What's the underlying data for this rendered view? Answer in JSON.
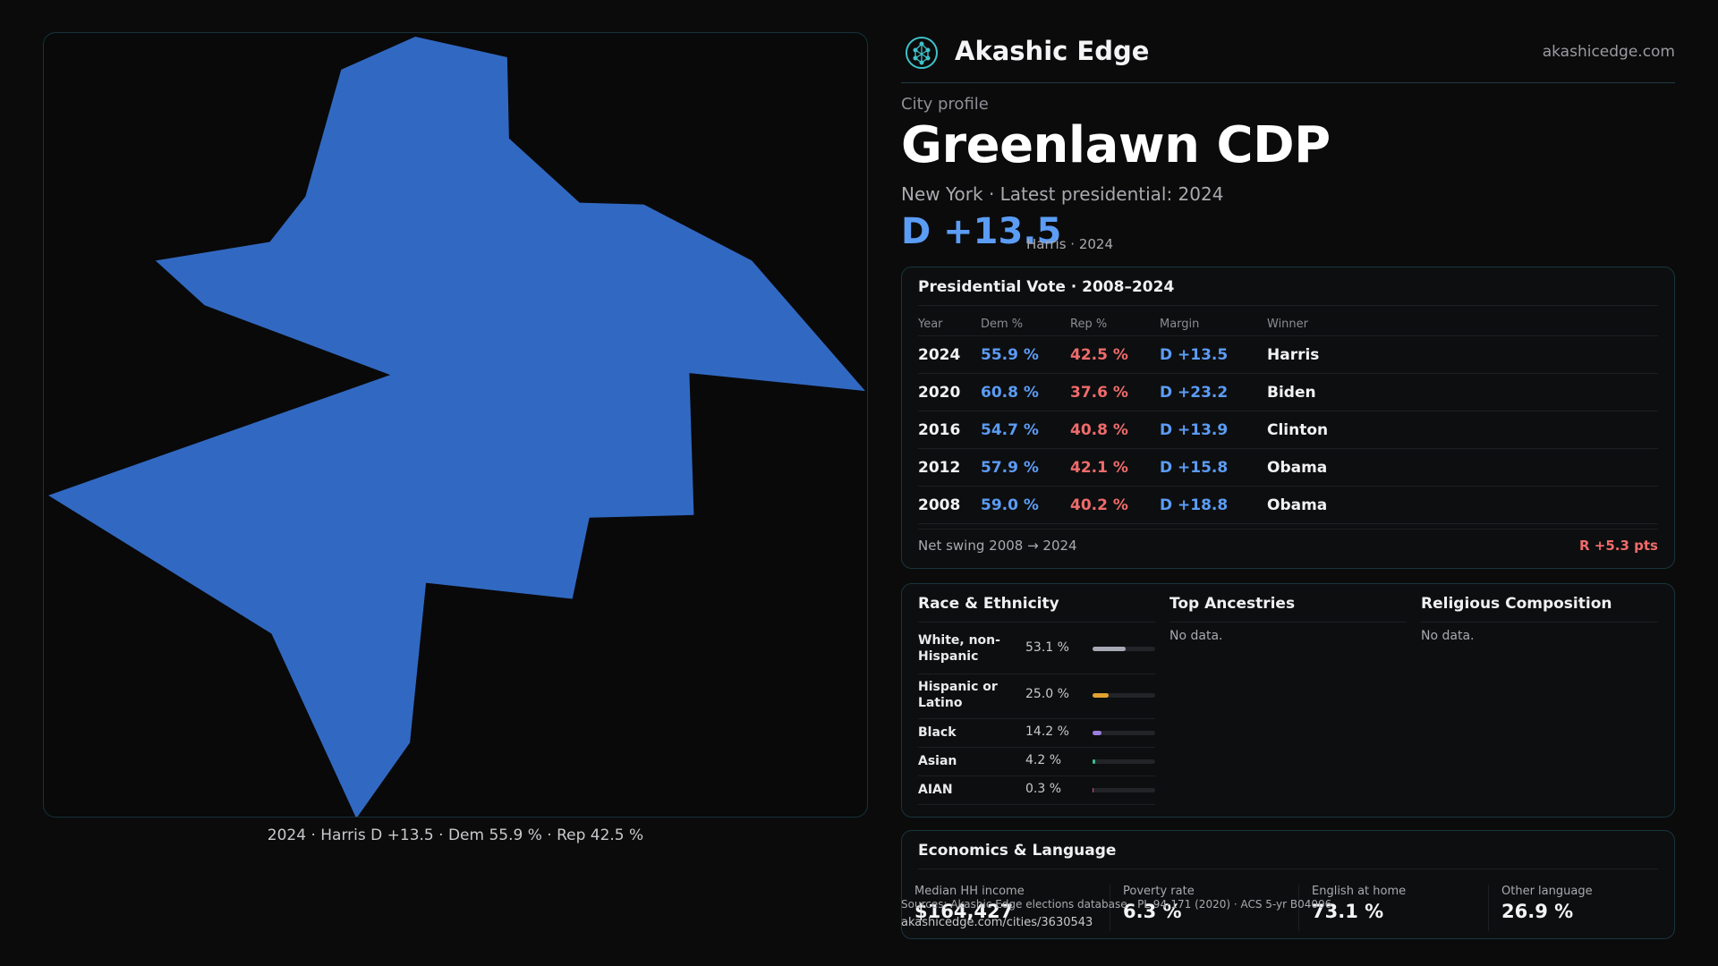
{
  "map": {
    "caption": "2024 · Harris D +13.5 · Dem 55.9 % · Rep 42.5 %",
    "fill_color": "#3169c2"
  },
  "brand": {
    "name": "Akashic Edge",
    "url": "akashicedge.com",
    "logo_icon": "tree-of-life-icon"
  },
  "profile": {
    "kicker": "City profile",
    "city": "Greenlawn CDP",
    "subline": "New York  · Latest presidential: 2024",
    "margin": "D +13.5",
    "margin_note": "Harris · 2024"
  },
  "vote": {
    "title": "Presidential Vote · 2008–2024",
    "headers": {
      "year": "Year",
      "dem": "Dem %",
      "rep": "Rep %",
      "margin": "Margin",
      "winner": "Winner"
    },
    "rows": [
      {
        "year": "2024",
        "dem": "55.9 %",
        "rep": "42.5 %",
        "margin": "D +13.5",
        "winner": "Harris"
      },
      {
        "year": "2020",
        "dem": "60.8 %",
        "rep": "37.6 %",
        "margin": "D +23.2",
        "winner": "Biden"
      },
      {
        "year": "2016",
        "dem": "54.7 %",
        "rep": "40.8 %",
        "margin": "D +13.9",
        "winner": "Clinton"
      },
      {
        "year": "2012",
        "dem": "57.9 %",
        "rep": "42.1 %",
        "margin": "D +15.8",
        "winner": "Obama"
      },
      {
        "year": "2008",
        "dem": "59.0 %",
        "rep": "40.2 %",
        "margin": "D +18.8",
        "winner": "Obama"
      }
    ],
    "swing_label": "Net swing 2008 → 2024",
    "swing_value": "R +5.3 pts"
  },
  "race": {
    "title": "Race & Ethnicity",
    "items": [
      {
        "name": "White, non-Hispanic",
        "pct": "53.1 %",
        "value": 53.1,
        "color": "#a7aab6"
      },
      {
        "name": "Hispanic or Latino",
        "pct": "25.0 %",
        "value": 25.0,
        "color": "#e3a132"
      },
      {
        "name": "Black",
        "pct": "14.2 %",
        "value": 14.2,
        "color": "#9b7ee0"
      },
      {
        "name": "Asian",
        "pct": "4.2 %",
        "value": 4.2,
        "color": "#3fbf8f"
      },
      {
        "name": "AIAN",
        "pct": "0.3 %",
        "value": 0.3,
        "color": "#c25a8e"
      }
    ]
  },
  "ancestries": {
    "title": "Top Ancestries",
    "empty": "No data."
  },
  "religion": {
    "title": "Religious Composition",
    "empty": "No data."
  },
  "economics": {
    "title": "Economics & Language",
    "cells": [
      {
        "label": "Median HH income",
        "value": "$164,427"
      },
      {
        "label": "Poverty rate",
        "value": "6.3 %"
      },
      {
        "label": "English at home",
        "value": "73.1 %"
      },
      {
        "label": "Other language",
        "value": "26.9 %"
      }
    ]
  },
  "footer": {
    "source": "Sources: Akashic Edge elections database · PL 94-171 (2020) · ACS 5-yr B04006",
    "url": "akashicedge.com/cities/3630543"
  }
}
